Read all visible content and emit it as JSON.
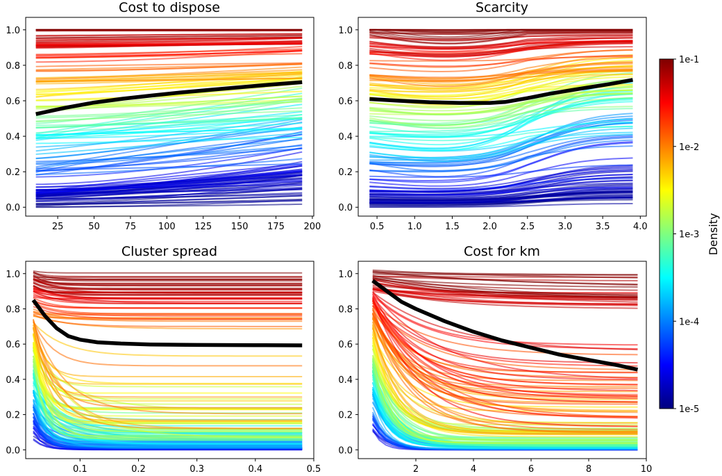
{
  "chart_data": [
    {
      "type": "line",
      "title": "Cost to dispose",
      "xlim": [
        3,
        201
      ],
      "ylim": [
        -0.05,
        1.07
      ],
      "xticks": [
        25,
        50,
        75,
        100,
        125,
        150,
        175,
        200
      ],
      "xtick_labels": [
        "25",
        "50",
        "75",
        "100",
        "125",
        "150",
        "175",
        "200"
      ],
      "yticks": [
        0.0,
        0.2,
        0.4,
        0.6,
        0.8,
        1.0
      ],
      "ytick_labels": [
        "0.0",
        "0.2",
        "0.4",
        "0.6",
        "0.8",
        "1.0"
      ],
      "average_line": {
        "name": "mean",
        "color": "#000000",
        "x": [
          10,
          30,
          50,
          70,
          90,
          110,
          130,
          150,
          170,
          193
        ],
        "y": [
          0.525,
          0.56,
          0.59,
          0.612,
          0.63,
          0.647,
          0.662,
          0.676,
          0.69,
          0.705
        ]
      },
      "ensemble": {
        "count": 150,
        "style": "flat-to-rising",
        "x_range": [
          10,
          193
        ]
      }
    },
    {
      "type": "line",
      "title": "Scarcity",
      "xlim": [
        0.25,
        4.08
      ],
      "ylim": [
        -0.05,
        1.07
      ],
      "xticks": [
        0.5,
        1.0,
        1.5,
        2.0,
        2.5,
        3.0,
        3.5,
        4.0
      ],
      "xtick_labels": [
        "0.5",
        "1.0",
        "1.5",
        "2.0",
        "2.5",
        "3.0",
        "3.5",
        "4.0"
      ],
      "yticks": [
        0.0,
        0.2,
        0.4,
        0.6,
        0.8,
        1.0
      ],
      "ytick_labels": [
        "0.0",
        "0.2",
        "0.4",
        "0.6",
        "0.8",
        "1.0"
      ],
      "average_line": {
        "name": "mean",
        "color": "#000000",
        "x": [
          0.4,
          0.8,
          1.2,
          1.6,
          2.0,
          2.2,
          2.5,
          2.8,
          3.2,
          3.6,
          3.9
        ],
        "y": [
          0.61,
          0.6,
          0.592,
          0.588,
          0.588,
          0.593,
          0.615,
          0.64,
          0.668,
          0.695,
          0.718
        ]
      },
      "ensemble": {
        "count": 150,
        "style": "dip-then-rise",
        "x_range": [
          0.4,
          3.9
        ]
      }
    },
    {
      "type": "line",
      "title": "Cluster spread",
      "xlim": [
        0.007,
        0.5
      ],
      "ylim": [
        -0.05,
        1.07
      ],
      "xticks": [
        0.1,
        0.2,
        0.3,
        0.4,
        0.5
      ],
      "xtick_labels": [
        "0.1",
        "0.2",
        "0.3",
        "0.4",
        "0.5"
      ],
      "yticks": [
        0.0,
        0.2,
        0.4,
        0.6,
        0.8,
        1.0
      ],
      "ytick_labels": [
        "0.0",
        "0.2",
        "0.4",
        "0.6",
        "0.8",
        "1.0"
      ],
      "average_line": {
        "name": "mean",
        "color": "#000000",
        "x": [
          0.02,
          0.04,
          0.06,
          0.08,
          0.1,
          0.13,
          0.17,
          0.22,
          0.3,
          0.4,
          0.48
        ],
        "y": [
          0.85,
          0.76,
          0.69,
          0.645,
          0.625,
          0.61,
          0.603,
          0.598,
          0.595,
          0.594,
          0.593
        ]
      },
      "ensemble": {
        "count": 150,
        "style": "fast-decay",
        "x_range": [
          0.02,
          0.48
        ]
      }
    },
    {
      "type": "line",
      "title": "Cost for km",
      "xlim": [
        0.0,
        10.0
      ],
      "ylim": [
        -0.05,
        1.07
      ],
      "xticks": [
        2,
        4,
        6,
        8,
        10
      ],
      "xtick_labels": [
        "2",
        "4",
        "6",
        "8",
        "10"
      ],
      "yticks": [
        0.0,
        0.2,
        0.4,
        0.6,
        0.8,
        1.0
      ],
      "ytick_labels": [
        "0.0",
        "0.2",
        "0.4",
        "0.6",
        "0.8",
        "1.0"
      ],
      "average_line": {
        "name": "mean",
        "color": "#000000",
        "x": [
          0.5,
          1.0,
          1.5,
          2.0,
          3.0,
          4.0,
          5.0,
          6.0,
          7.0,
          8.0,
          9.0,
          9.7
        ],
        "y": [
          0.96,
          0.9,
          0.84,
          0.8,
          0.73,
          0.67,
          0.62,
          0.58,
          0.54,
          0.51,
          0.48,
          0.455
        ]
      },
      "ensemble": {
        "count": 150,
        "style": "slow-decay",
        "x_range": [
          0.5,
          9.7
        ]
      }
    }
  ],
  "colorbar": {
    "label": "Density",
    "colormap": "jet",
    "scale": "log",
    "tick_labels": [
      "1e-5",
      "1e-4",
      "1e-3",
      "1e-2",
      "1e-1"
    ],
    "tick_values": [
      1e-05,
      0.0001,
      0.001,
      0.01,
      0.1
    ],
    "stops": [
      "#00007f",
      "#0000ff",
      "#007fff",
      "#00ffff",
      "#7fff7f",
      "#ffff00",
      "#ff7f00",
      "#ff0000",
      "#7f0000"
    ]
  }
}
